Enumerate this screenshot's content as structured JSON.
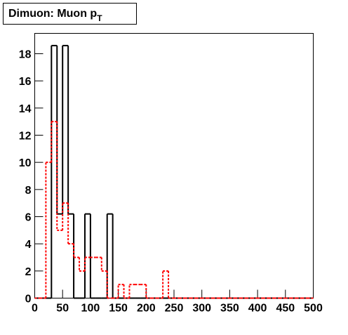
{
  "chart_data": {
    "type": "histogram",
    "title": "Dimuon: Muon p",
    "title_subscript": "T",
    "bins": [
      0,
      10,
      20,
      30,
      40,
      50,
      60,
      70,
      80,
      90,
      100,
      110,
      120,
      130,
      140,
      150,
      160,
      170,
      180,
      190,
      200,
      210,
      220,
      230,
      240,
      250,
      260,
      270,
      280,
      290,
      300,
      310,
      320,
      330,
      340,
      350,
      360,
      370,
      380,
      390,
      400,
      410,
      420,
      430,
      440,
      450,
      460,
      470,
      480,
      490,
      500
    ],
    "series": [
      {
        "color": "#000000",
        "dash": false,
        "values": [
          0,
          0,
          0,
          18.6,
          6.2,
          18.6,
          6.2,
          0,
          0,
          6.2,
          0,
          0,
          0,
          6.2,
          0,
          0,
          0,
          0,
          0,
          0,
          0,
          0,
          0,
          0,
          0,
          0,
          0,
          0,
          0,
          0,
          0,
          0,
          0,
          0,
          0,
          0,
          0,
          0,
          0,
          0,
          0,
          0,
          0,
          0,
          0,
          0,
          0,
          0,
          0,
          0
        ]
      },
      {
        "color": "#ff0000",
        "dash": true,
        "values": [
          0,
          0,
          10,
          13,
          5,
          7,
          4,
          3,
          2,
          3,
          3,
          3,
          2,
          0,
          0,
          1,
          0,
          1,
          1,
          1,
          0,
          0,
          0,
          2,
          0,
          0,
          0,
          0,
          0,
          0,
          0,
          0,
          0,
          0,
          0,
          0,
          0,
          0,
          0,
          0,
          0,
          0,
          0,
          0,
          0,
          0,
          0,
          0,
          0,
          0
        ]
      }
    ],
    "xlim": [
      0,
      500
    ],
    "xticks": [
      0,
      50,
      100,
      150,
      200,
      250,
      300,
      350,
      400,
      450,
      500
    ],
    "ylim": [
      0,
      19.5
    ],
    "yticks": [
      0,
      2,
      4,
      6,
      8,
      10,
      12,
      14,
      16,
      18
    ]
  }
}
